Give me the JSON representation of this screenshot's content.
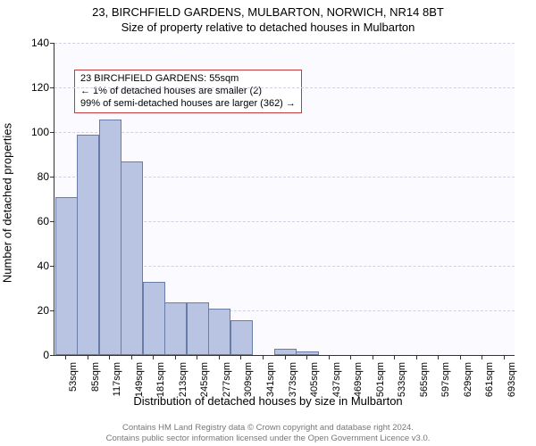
{
  "title": "23, BIRCHFIELD GARDENS, MULBARTON, NORWICH, NR14 8BT",
  "subtitle": "Size of property relative to detached houses in Mulbarton",
  "chart": {
    "type": "bar",
    "ylabel": "Number of detached properties",
    "xlabel": "Distribution of detached houses by size in Mulbarton",
    "ylim": [
      0,
      140
    ],
    "ytick_step": 20,
    "yticks": [
      0,
      20,
      40,
      60,
      80,
      100,
      120,
      140
    ],
    "background_color": "#fafaff",
    "grid_color": "#d0d0e0",
    "bar_fill": "#b8c4e2",
    "bar_stroke": "#6b7ba8",
    "title_fontsize": 13,
    "label_fontsize": 13,
    "tick_fontsize": 11,
    "categories": [
      "53sqm",
      "85sqm",
      "117sqm",
      "149sqm",
      "181sqm",
      "213sqm",
      "245sqm",
      "277sqm",
      "309sqm",
      "341sqm",
      "373sqm",
      "405sqm",
      "437sqm",
      "469sqm",
      "501sqm",
      "533sqm",
      "565sqm",
      "597sqm",
      "629sqm",
      "661sqm",
      "693sqm"
    ],
    "values": [
      70,
      98,
      105,
      86,
      32,
      23,
      23,
      20,
      15,
      0,
      2,
      1,
      0,
      0,
      0,
      0,
      0,
      0,
      0,
      0,
      0
    ]
  },
  "annotation": {
    "border_color": "#c43a3a",
    "line1": "23 BIRCHFIELD GARDENS: 55sqm",
    "line2": "← 1% of detached houses are smaller (2)",
    "line3": "99% of semi-detached houses are larger (362) →"
  },
  "attribution": {
    "line1": "Contains HM Land Registry data © Crown copyright and database right 2024.",
    "line2": "Contains public sector information licensed under the Open Government Licence v3.0."
  }
}
